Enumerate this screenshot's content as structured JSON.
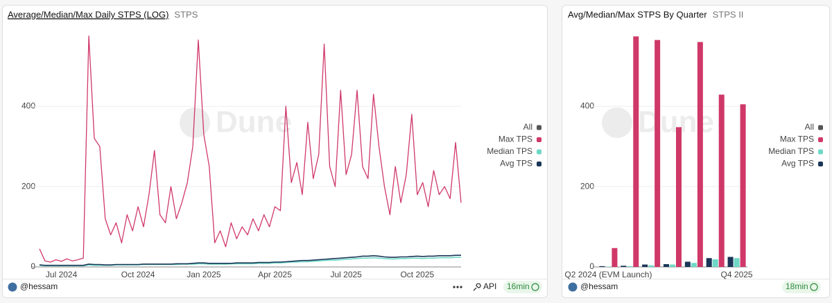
{
  "chart_data": [
    {
      "type": "line",
      "title": "Average/Median/Max Daily STPS (LOG)",
      "subtitle": "STPS",
      "watermark": "Dune",
      "legend": "right",
      "legend_toggle": "All",
      "legend_toggle_color": "#555555",
      "grid": true,
      "ylim": [
        0,
        580
      ],
      "yticks": [
        0,
        200,
        400
      ],
      "categories": [
        null,
        null,
        null,
        null,
        "Jul 2024",
        null,
        null,
        null,
        null,
        null,
        null,
        null,
        null,
        null,
        null,
        null,
        null,
        null,
        "Oct 2024",
        null,
        null,
        null,
        null,
        null,
        null,
        null,
        null,
        null,
        null,
        null,
        "Jan 2025",
        null,
        null,
        null,
        null,
        null,
        null,
        null,
        null,
        null,
        null,
        null,
        null,
        "Apr 2025",
        null,
        null,
        null,
        null,
        null,
        null,
        null,
        null,
        null,
        null,
        null,
        null,
        "Jul 2025",
        null,
        null,
        null,
        null,
        null,
        null,
        null,
        null,
        null,
        null,
        null,
        null,
        "Oct 2025",
        null,
        null,
        null,
        null,
        null,
        null,
        null,
        null
      ],
      "series": [
        {
          "name": "Max TPS",
          "color": "#cf3868",
          "values": [
            45,
            15,
            12,
            18,
            14,
            20,
            15,
            18,
            22,
            575,
            320,
            300,
            120,
            80,
            110,
            60,
            130,
            90,
            150,
            100,
            180,
            290,
            130,
            110,
            200,
            120,
            160,
            210,
            300,
            565,
            330,
            250,
            60,
            90,
            50,
            110,
            70,
            100,
            80,
            120,
            90,
            130,
            100,
            150,
            140,
            400,
            210,
            260,
            180,
            360,
            220,
            280,
            555,
            250,
            200,
            440,
            230,
            280,
            440,
            250,
            220,
            430,
            300,
            200,
            130,
            250,
            160,
            230,
            380,
            180,
            210,
            150,
            240,
            180,
            200,
            170,
            310,
            160
          ]
        },
        {
          "name": "Median TPS",
          "color": "#6fd8c6",
          "values": [
            4,
            3,
            3,
            3,
            3,
            3,
            3,
            3,
            3,
            5,
            4,
            4,
            4,
            4,
            5,
            5,
            5,
            5,
            5,
            6,
            6,
            6,
            6,
            6,
            6,
            6,
            7,
            7,
            7,
            8,
            8,
            7,
            7,
            7,
            7,
            8,
            8,
            8,
            8,
            8,
            9,
            9,
            9,
            10,
            10,
            11,
            12,
            12,
            13,
            13,
            14,
            15,
            16,
            17,
            17,
            18,
            19,
            20,
            21,
            22,
            22,
            23,
            22,
            21,
            20,
            20,
            21,
            21,
            22,
            22,
            21,
            22,
            22,
            23,
            23,
            23,
            24,
            24
          ]
        },
        {
          "name": "Avg TPS",
          "color": "#1b3658",
          "values": [
            5,
            4,
            4,
            4,
            4,
            4,
            4,
            4,
            4,
            7,
            6,
            6,
            5,
            5,
            6,
            6,
            6,
            6,
            6,
            7,
            7,
            7,
            7,
            7,
            7,
            8,
            8,
            8,
            9,
            10,
            10,
            9,
            9,
            9,
            9,
            9,
            10,
            10,
            10,
            10,
            11,
            11,
            11,
            12,
            12,
            13,
            14,
            15,
            16,
            16,
            17,
            18,
            19,
            20,
            21,
            22,
            23,
            24,
            25,
            27,
            27,
            28,
            27,
            25,
            24,
            24,
            25,
            25,
            26,
            27,
            26,
            27,
            27,
            28,
            28,
            28,
            29,
            29
          ]
        }
      ]
    },
    {
      "type": "bar",
      "title": "Avg/Median/Max STPS By Quarter",
      "subtitle": "STPS II",
      "watermark": "Dune",
      "legend": "right",
      "legend_toggle": "All",
      "legend_toggle_color": "#555555",
      "grid": true,
      "ylim": [
        0,
        580
      ],
      "yticks": [
        0,
        200,
        400
      ],
      "categories": [
        "Q2 2024 (EVM Launch)",
        null,
        null,
        null,
        null,
        null,
        "Q4 2025"
      ],
      "series": [
        {
          "name": "Max TPS",
          "color": "#cf3868",
          "values": [
            47,
            574,
            565,
            348,
            560,
            429,
            405
          ]
        },
        {
          "name": "Median TPS",
          "color": "#6fd8c6",
          "values": [
            1,
            2,
            4,
            6,
            10,
            19,
            22
          ]
        },
        {
          "name": "Avg TPS",
          "color": "#1b3658",
          "values": [
            2,
            3,
            6,
            7,
            13,
            22,
            25
          ]
        }
      ]
    }
  ],
  "footers": [
    {
      "author": "@hessam",
      "api": "API",
      "age": "16min"
    },
    {
      "author": "@hessam",
      "age": "18min"
    }
  ]
}
